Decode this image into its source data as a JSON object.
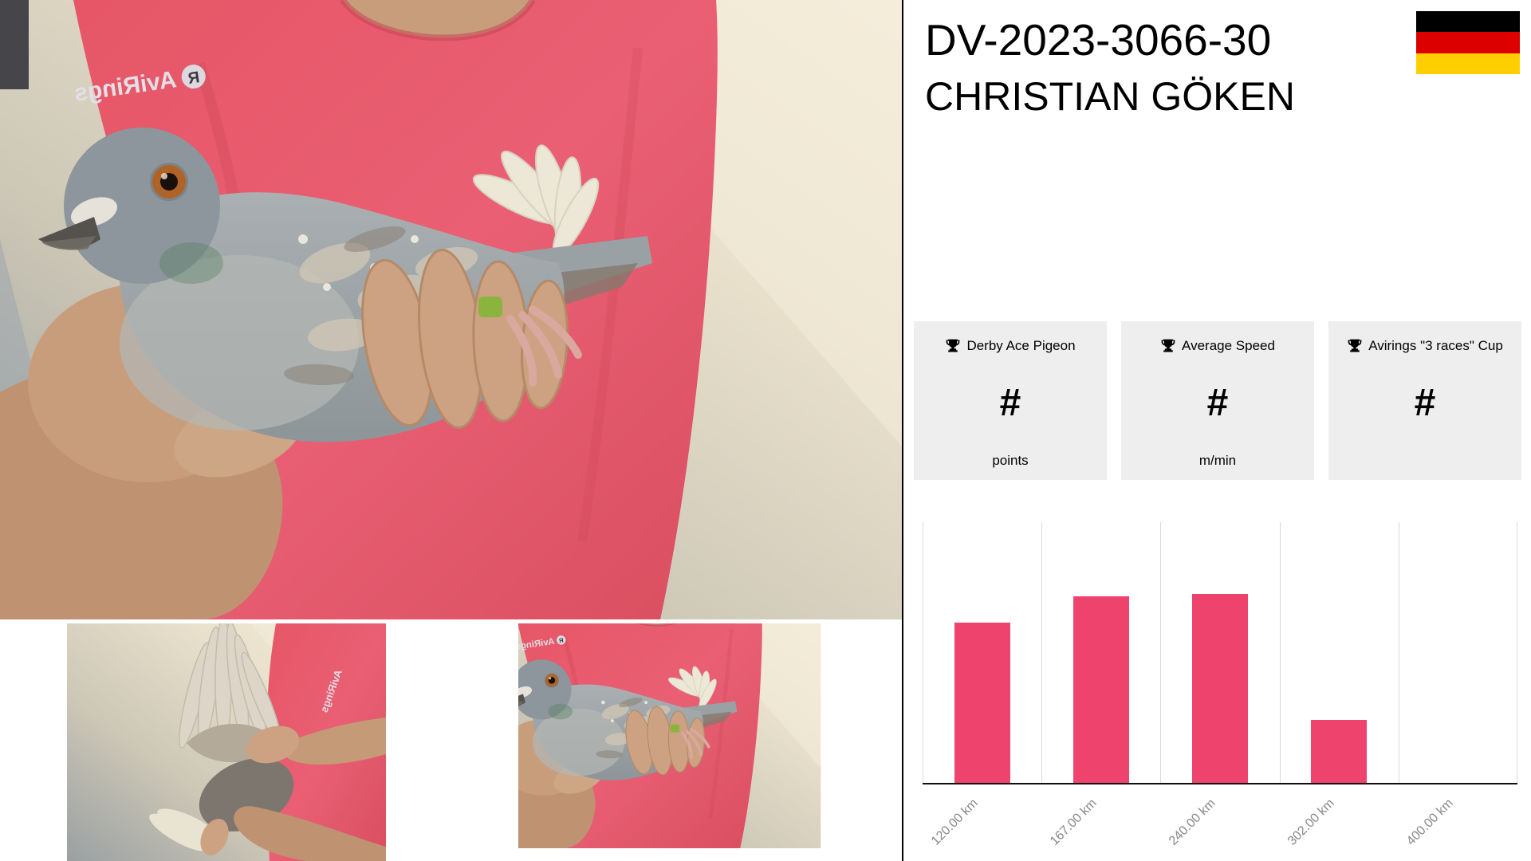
{
  "header": {
    "ring_number": "DV-2023-3066-30",
    "owner_name": "CHRISTIAN GÖKEN",
    "flag": {
      "country": "germany",
      "stripe_colors": [
        "#000000",
        "#DD0000",
        "#FFCE00"
      ]
    }
  },
  "stats": [
    {
      "icon": "trophy-icon",
      "label": "Derby Ace Pigeon",
      "value": "#",
      "unit": "points"
    },
    {
      "icon": "trophy-icon",
      "label": "Average Speed",
      "value": "#",
      "unit": "m/min"
    },
    {
      "icon": "trophy-icon",
      "label": "Avirings \"3 races\" Cup",
      "value": "#",
      "unit": ""
    }
  ],
  "chart_data": {
    "type": "bar",
    "categories": [
      "120.00 km",
      "167.00 km",
      "240.00 km",
      "302.00 km",
      "400.00 km"
    ],
    "values": [
      61,
      71,
      72,
      24,
      0
    ],
    "title": "",
    "xlabel": "",
    "ylabel": "",
    "ylim": [
      0,
      100
    ],
    "grid": "vertical-only",
    "legend": "none",
    "bar_color": "#EE436D",
    "gridline_color": "#D9D9D9",
    "axis_line_color": "#101010",
    "tick_label_color": "#878787",
    "tick_label_rotation_deg": -45
  },
  "photos": {
    "shirt_logo_text": "AviRings",
    "shirt_logo_badge_letter": "R",
    "card_background": "#EEEEEE",
    "shirt_color": "#E65666"
  }
}
